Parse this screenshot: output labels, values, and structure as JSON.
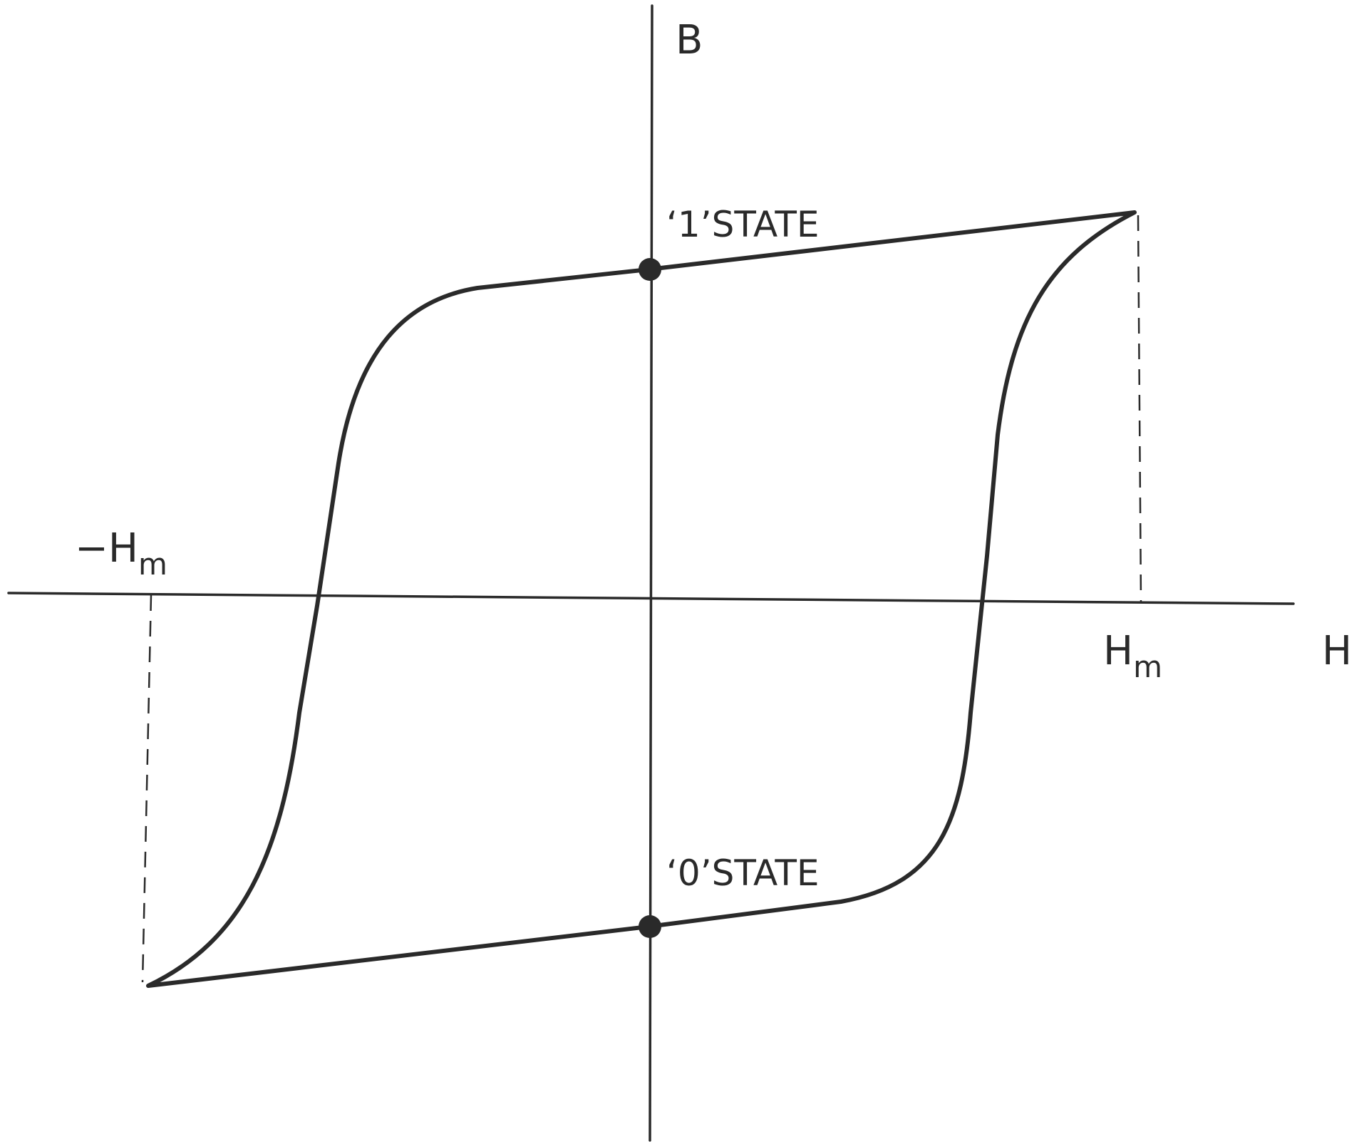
{
  "diagram": {
    "axes": {
      "x_label": "H",
      "y_label": "B"
    },
    "states": {
      "one": "‘1’STATE",
      "zero": "‘0’STATE"
    },
    "field_limits": {
      "neg": {
        "sign": "−",
        "symbol": "H",
        "subscript": "m"
      },
      "pos": {
        "symbol": "H",
        "subscript": "m"
      }
    },
    "colors": {
      "ink": "#2a2a2a",
      "background": "#ffffff"
    }
  }
}
